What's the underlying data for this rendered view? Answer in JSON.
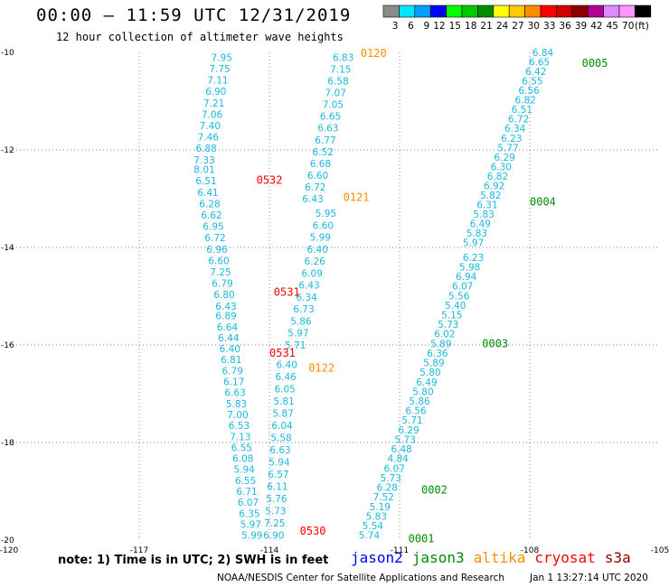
{
  "header": {
    "title": "00:00 – 11:59 UTC 12/31/2019",
    "subtitle": "12 hour collection of altimeter wave heights"
  },
  "colorbar": {
    "unit": "(ft)",
    "stops": [
      {
        "label": "3",
        "color": "#8c8c8c"
      },
      {
        "label": "6",
        "color": "#00e6ff"
      },
      {
        "label": "9",
        "color": "#00a0ff"
      },
      {
        "label": "12",
        "color": "#0000ff"
      },
      {
        "label": "15",
        "color": "#00ff00"
      },
      {
        "label": "18",
        "color": "#00c800"
      },
      {
        "label": "21",
        "color": "#008c00"
      },
      {
        "label": "24",
        "color": "#ffff00"
      },
      {
        "label": "27",
        "color": "#ffc800"
      },
      {
        "label": "30",
        "color": "#ff8c00"
      },
      {
        "label": "33",
        "color": "#ff0000"
      },
      {
        "label": "36",
        "color": "#d20000"
      },
      {
        "label": "39",
        "color": "#8c0000"
      },
      {
        "label": "42",
        "color": "#b40096"
      },
      {
        "label": "45",
        "color": "#dc8cff"
      },
      {
        "label": "70",
        "color": "#ff96ff"
      },
      {
        "label": "",
        "color": "#000000"
      }
    ]
  },
  "map": {
    "lon_range": [
      -120,
      -105
    ],
    "lat_range": [
      -20,
      -10
    ],
    "x_ticks": [
      "-120",
      "-117",
      "-114",
      "-111",
      "-108",
      "-105"
    ],
    "y_ticks": [
      "-10",
      "-12",
      "-14",
      "-16",
      "-18",
      "-20"
    ],
    "label_color": "#1ab8e0",
    "tracks": [
      {
        "lon_start": -115.1,
        "lon_end": -115.5,
        "lat_start": -10.1,
        "lat_end": -12.2,
        "values": [
          "7.95",
          "7.75",
          "7.11",
          "6.90",
          "7.21",
          "7.06",
          "7.40",
          "7.46",
          "6.88",
          "7.33"
        ]
      },
      {
        "lon_start": -115.5,
        "lon_end": -115.0,
        "lat_start": -12.4,
        "lat_end": -15.2,
        "values": [
          "8.01",
          "6.51",
          "6.41",
          "6.28",
          "6.62",
          "6.95",
          "6.72",
          "6.96",
          "6.60",
          "7.25",
          "6.79",
          "6.80",
          "6.43"
        ]
      },
      {
        "lon_start": -115.0,
        "lon_end": -114.4,
        "lat_start": -15.4,
        "lat_end": -19.9,
        "values": [
          "6.89",
          "6.64",
          "6.44",
          "6.40",
          "6.81",
          "6.79",
          "6.17",
          "6.63",
          "5.83",
          "7.00",
          "6.53",
          "7.13",
          "6.55",
          "6.08",
          "5.94",
          "6.55",
          "6.71",
          "6.07",
          "6.35",
          "5.97",
          "5.99"
        ]
      },
      {
        "lon_start": -112.3,
        "lon_end": -113.0,
        "lat_start": -10.1,
        "lat_end": -13.0,
        "values": [
          "6.83",
          "7.15",
          "6.58",
          "7.07",
          "7.05",
          "6.65",
          "6.63",
          "6.77",
          "6.52",
          "6.68",
          "6.60",
          "6.72",
          "6.43"
        ]
      },
      {
        "lon_start": -112.7,
        "lon_end": -113.4,
        "lat_start": -13.3,
        "lat_end": -16.0,
        "values": [
          "5.95",
          "6.60",
          "5.99",
          "6.40",
          "6.26",
          "6.09",
          "6.43",
          "6.34",
          "6.73",
          "5.86",
          "5.97",
          "5.71"
        ]
      },
      {
        "lon_start": -113.6,
        "lon_end": -113.9,
        "lat_start": -16.4,
        "lat_end": -19.9,
        "values": [
          "6.40",
          "6.46",
          "6.05",
          "5.81",
          "5.87",
          "6.04",
          "5.58",
          "6.63",
          "5.94",
          "6.57",
          "6.11",
          "5.76",
          "5.73",
          "7.25",
          "6.90"
        ]
      },
      {
        "lon_start": -107.7,
        "lon_end": -109.3,
        "lat_start": -10.0,
        "lat_end": -13.9,
        "values": [
          "6.84",
          "6.65",
          "6.42",
          "6.55",
          "6.56",
          "6.82",
          "6.51",
          "6.72",
          "6.34",
          "6.23",
          "5.77",
          "6.29",
          "6.30",
          "6.82",
          "6.92",
          "5.82",
          "6.31",
          "5.83",
          "6.49",
          "5.83",
          "5.97"
        ]
      },
      {
        "lon_start": -109.3,
        "lon_end": -111.7,
        "lat_start": -14.2,
        "lat_end": -19.9,
        "values": [
          "6.23",
          "5.98",
          "6.94",
          "6.07",
          "5.56",
          "5.40",
          "5.15",
          "5.73",
          "6.02",
          "5.89",
          "6.36",
          "5.89",
          "5.80",
          "6.49",
          "5.80",
          "5.86",
          "6.56",
          "5.71",
          "6.29",
          "5.73",
          "6.48",
          "4.84",
          "6.07",
          "5.73",
          "6.28",
          "7.52",
          "5.19",
          "5.83",
          "5.54",
          "5.74"
        ]
      }
    ],
    "pass_labels": [
      {
        "text": "0120",
        "lon": -111.9,
        "lat": -10.0,
        "color": "#ff8c00"
      },
      {
        "text": "0121",
        "lon": -112.3,
        "lat": -12.95,
        "color": "#ff8c00"
      },
      {
        "text": "0122",
        "lon": -113.1,
        "lat": -16.45,
        "color": "#ff8c00"
      },
      {
        "text": "0532",
        "lon": -114.3,
        "lat": -12.6,
        "color": "#ff0000"
      },
      {
        "text": "0531",
        "lon": -113.9,
        "lat": -14.9,
        "color": "#ff0000"
      },
      {
        "text": "0531",
        "lon": -114.0,
        "lat": -16.15,
        "color": "#ff0000"
      },
      {
        "text": "0530",
        "lon": -113.3,
        "lat": -19.8,
        "color": "#ff0000"
      },
      {
        "text": "0005",
        "lon": -106.8,
        "lat": -10.2,
        "color": "#008c00"
      },
      {
        "text": "0004",
        "lon": -108.0,
        "lat": -13.05,
        "color": "#008c00"
      },
      {
        "text": "0003",
        "lon": -109.1,
        "lat": -15.95,
        "color": "#008c00"
      },
      {
        "text": "0002",
        "lon": -110.5,
        "lat": -18.95,
        "color": "#008c00"
      },
      {
        "text": "0001",
        "lon": -110.8,
        "lat": -19.95,
        "color": "#008c00"
      }
    ]
  },
  "footer": {
    "note": "note: 1) Time is in UTC; 2) SWH is in feet",
    "legend": [
      {
        "name": "jason2",
        "color": "#0000ff"
      },
      {
        "name": "jason3",
        "color": "#008c00"
      },
      {
        "name": "altika",
        "color": "#ff8c00"
      },
      {
        "name": "cryosat",
        "color": "#ff0000"
      },
      {
        "name": "s3a",
        "color": "#8c0000"
      }
    ],
    "credit": "NOAA/NESDIS Center for Satellite Applications and Research",
    "timestamp": "Jan  1 13:27:14 UTC 2020"
  }
}
